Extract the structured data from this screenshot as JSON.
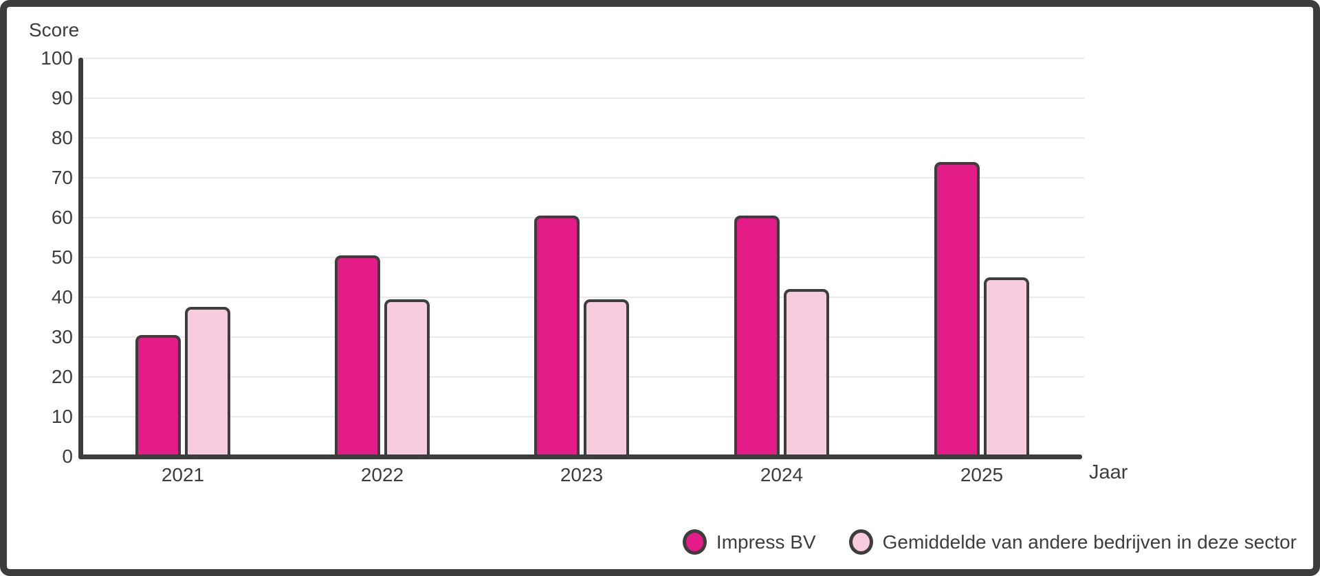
{
  "frame": {
    "background_color": "#ffffff",
    "border_color": "#3d3d3d"
  },
  "chart_data": {
    "type": "bar",
    "title": "",
    "ylabel": "Score",
    "xlabel": "Jaar",
    "categories": [
      "2021",
      "2022",
      "2023",
      "2024",
      "2025"
    ],
    "series": [
      {
        "name": "Impress BV",
        "color": "#e31c87",
        "values": [
          30,
          50,
          60,
          60,
          73.5
        ]
      },
      {
        "name": "Gemiddelde van andere bedrijven in deze sector",
        "color": "#f8ccdf",
        "values": [
          37,
          39,
          39,
          41.5,
          44.5
        ]
      }
    ],
    "ylim": [
      0,
      100
    ],
    "yticks": [
      0,
      10,
      20,
      30,
      40,
      50,
      60,
      70,
      80,
      90,
      100
    ],
    "grid": true,
    "gridline_color": "#e9e9e9",
    "bar_outline_color": "#3d3d3d",
    "axis_color": "#3d3d3d",
    "legend_position": "bottom-right"
  }
}
